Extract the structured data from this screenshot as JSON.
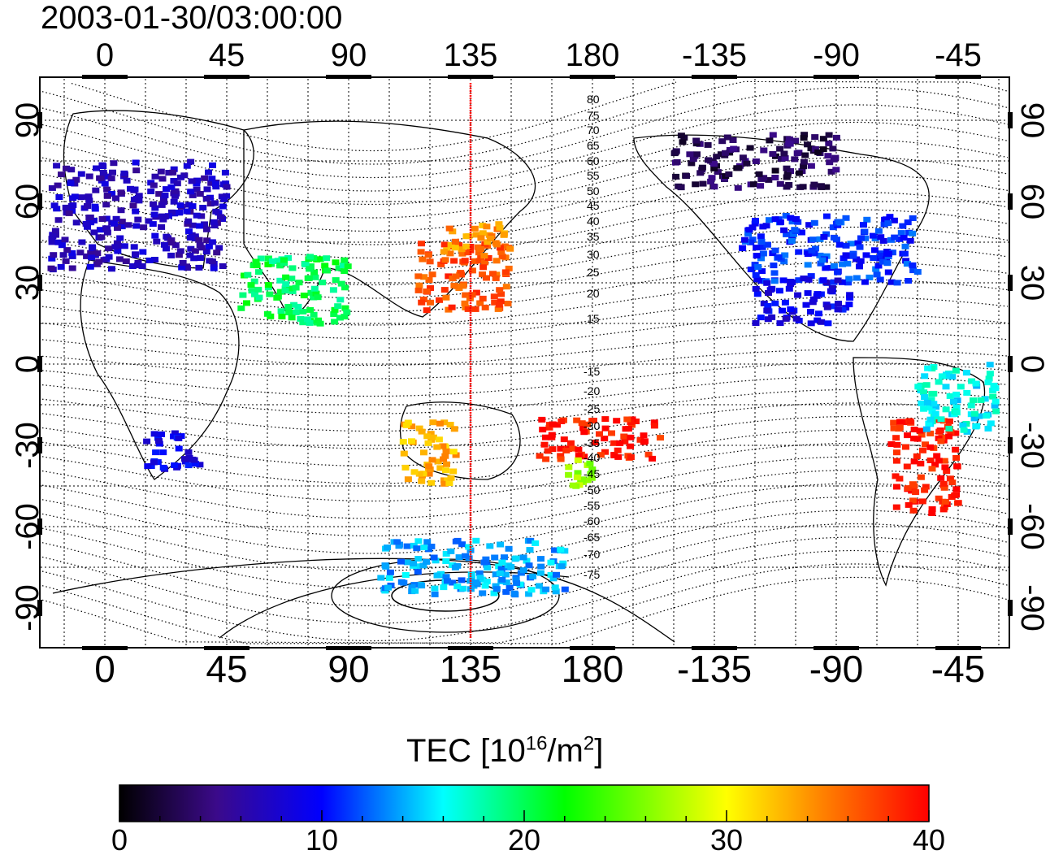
{
  "title": "2003-01-30/03:00:00",
  "lon_ticks": [
    "0",
    "45",
    "90",
    "135",
    "180",
    "-135",
    "-90",
    "-45"
  ],
  "lat_ticks": [
    "90",
    "60",
    "30",
    "0",
    "-30",
    "-60",
    "-90"
  ],
  "mlat_labels": [
    "80",
    "75",
    "70",
    "65",
    "60",
    "55",
    "50",
    "45",
    "40",
    "35",
    "30",
    "25",
    "20",
    "15",
    "-15",
    "-20",
    "-25",
    "-30",
    "-35",
    "-40",
    "-45",
    "-50",
    "-55",
    "-60",
    "-65",
    "-70",
    "-75"
  ],
  "colorbar": {
    "title_prefix": "TEC  [10",
    "title_exp1": "16",
    "title_mid": "/m",
    "title_exp2": "2",
    "title_suffix": "]",
    "ticks": [
      "0",
      "10",
      "20",
      "30",
      "40"
    ],
    "min": 0,
    "max": 40,
    "colors": [
      "#000000",
      "#3b0a8a",
      "#0000ff",
      "#00ffff",
      "#00ff00",
      "#ffff00",
      "#ff8000",
      "#ff0000"
    ]
  },
  "chart_data": {
    "type": "heatmap",
    "title": "2003-01-30/03:00:00",
    "xlabel": "",
    "ylabel": "",
    "xlim": [
      -25,
      345
    ],
    "ylim": [
      -90,
      90
    ],
    "marker_longitude": 135,
    "value_label": "TEC  [10^16/m^2]",
    "value_range": [
      0,
      40
    ],
    "regions": [
      {
        "lon": [
          -20,
          45
        ],
        "lat": [
          35,
          75
        ],
        "tec": 7
      },
      {
        "lon": [
          235,
          300
        ],
        "lat": [
          30,
          55
        ],
        "tec": 11
      },
      {
        "lon": [
          240,
          275
        ],
        "lat": [
          15,
          32
        ],
        "tec": 9
      },
      {
        "lon": [
          115,
          150
        ],
        "lat": [
          20,
          45
        ],
        "tec": 37
      },
      {
        "lon": [
          125,
          150
        ],
        "lat": [
          40,
          52
        ],
        "tec": 34
      },
      {
        "lon": [
          160,
          205
        ],
        "lat": [
          -35,
          -20
        ],
        "tec": 39
      },
      {
        "lon": [
          290,
          315
        ],
        "lat": [
          -55,
          -20
        ],
        "tec": 39
      },
      {
        "lon": [
          170,
          180
        ],
        "lat": [
          -50,
          -35
        ],
        "tec": 27
      },
      {
        "lon": [
          50,
          90
        ],
        "lat": [
          15,
          40
        ],
        "tec": 20
      },
      {
        "lon": [
          110,
          130
        ],
        "lat": [
          -45,
          -20
        ],
        "tec": 33
      },
      {
        "lon": [
          15,
          35
        ],
        "lat": [
          -40,
          -25
        ],
        "tec": 9
      },
      {
        "lon": [
          300,
          330
        ],
        "lat": [
          -25,
          0
        ],
        "tec": 16
      },
      {
        "lon": [
          100,
          170
        ],
        "lat": [
          -85,
          -65
        ],
        "tec": 14
      },
      {
        "lon": [
          210,
          270
        ],
        "lat": [
          65,
          85
        ],
        "tec": 3
      }
    ]
  }
}
